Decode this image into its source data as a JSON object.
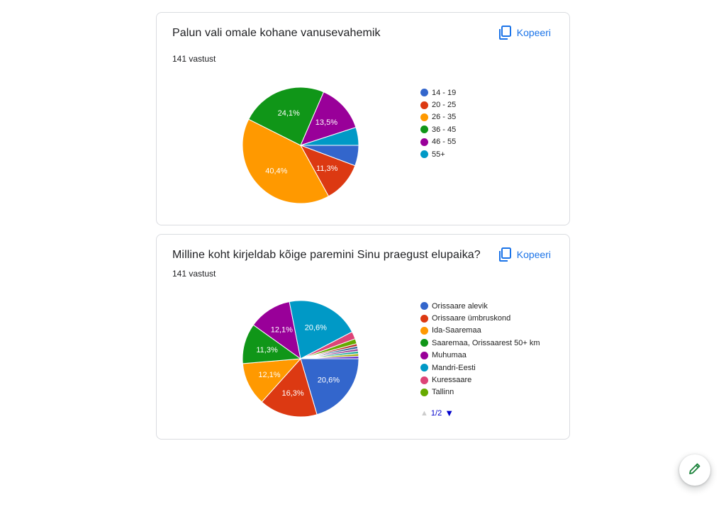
{
  "cards": [
    {
      "question": "Palun vali omale kohane vanusevahemik",
      "responses": "141 vastust",
      "copy_label": "Kopeeri",
      "chart_data": {
        "type": "pie",
        "categories": [
          "14 - 19",
          "20 - 25",
          "26 - 35",
          "36 - 45",
          "46 - 55",
          "55+"
        ],
        "values": [
          5.7,
          11.3,
          40.4,
          24.1,
          13.5,
          5.0
        ],
        "labels": [
          "",
          "11,3%",
          "40,4%",
          "24,1%",
          "13,5%",
          ""
        ],
        "colors": [
          "#3366cc",
          "#dc3912",
          "#ff9900",
          "#109618",
          "#990099",
          "#0099c6"
        ]
      }
    },
    {
      "question": "Milline koht kirjeldab kõige paremini Sinu praegust elupaika?",
      "responses": "141 vastust",
      "copy_label": "Kopeeri",
      "chart_data": {
        "type": "pie",
        "categories": [
          "Orissaare alevik",
          "Orissaare ümbruskond",
          "Ida-Saaremaa",
          "Saaremaa, Orissaarest 50+ km",
          "Muhumaa",
          "Mandri-Eesti",
          "Kuressaare",
          "Tallinn"
        ],
        "values": [
          20.6,
          16.3,
          12.1,
          11.3,
          12.1,
          20.6,
          2.1,
          1.4,
          0.7,
          0.7,
          0.7,
          0.7,
          0.7,
          0.7
        ],
        "labels": [
          "20,6%",
          "16,3%",
          "12,1%",
          "11,3%",
          "12,1%",
          "20,6%",
          "",
          "",
          "",
          "",
          "",
          "",
          "",
          ""
        ],
        "colors": [
          "#3366cc",
          "#dc3912",
          "#ff9900",
          "#109618",
          "#990099",
          "#0099c6",
          "#dd4477",
          "#66aa00",
          "#b82e2e",
          "#316395",
          "#994499",
          "#22aa99",
          "#aaaa11",
          "#6633cc"
        ],
        "legend_page": "1/2"
      }
    }
  ]
}
